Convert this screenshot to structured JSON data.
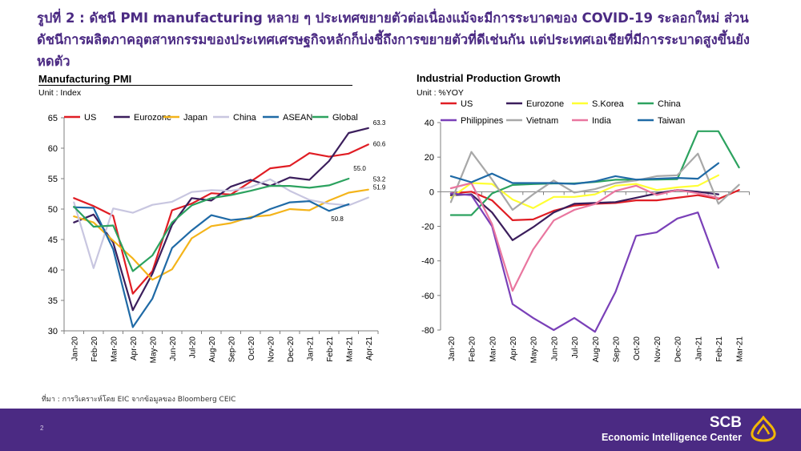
{
  "page": {
    "title": "รูปที่ 2 : ดัชนี PMI manufacturing หลาย ๆ ประเทศขยายตัวต่อเนื่องแม้จะมีการระบาดของ COVID-19 ระลอกใหม่ ส่วนดัชนีการผลิตภาคอุตสาหกรรมของประเทศเศรษฐกิจหลักก็บ่งชี้ถึงการขยายตัวที่ดีเช่นกัน แต่ประเทศเอเชียที่มีการระบาดสูงขึ้นยังหดตัว",
    "source": "ที่มา : การวิเคราะห์โดย EIC จากข้อมูลของ Bloomberg CEIC",
    "page_number": "2",
    "brand_name": "SCB",
    "brand_sub": "Economic Intelligence Center"
  },
  "chart_data": [
    {
      "type": "line",
      "title": "Manufacturing PMI",
      "unit": "Unit : Index",
      "categories": [
        "Jan-20",
        "Feb-20",
        "Mar-20",
        "Apr-20",
        "May-20",
        "Jun-20",
        "Jul-20",
        "Aug-20",
        "Sep-20",
        "Oct-20",
        "Nov-20",
        "Dec-20",
        "Jan-21",
        "Feb-21",
        "Mar-21",
        "Apr-21"
      ],
      "ylim": [
        30,
        65
      ],
      "yticks": [
        30,
        35,
        40,
        45,
        50,
        55,
        60,
        65
      ],
      "grid": false,
      "legend_position": "top",
      "series": [
        {
          "name": "US",
          "color": "#e01d24",
          "values": [
            51.8,
            50.5,
            48.9,
            36.1,
            39.8,
            49.8,
            50.9,
            52.6,
            52.4,
            54.5,
            56.7,
            57.1,
            59.2,
            58.6,
            59.1,
            60.6
          ]
        },
        {
          "name": "Eurozone",
          "color": "#3b1e5c",
          "values": [
            47.8,
            49.1,
            44.5,
            33.4,
            39.4,
            47.4,
            51.8,
            51.4,
            53.7,
            54.8,
            53.8,
            55.2,
            54.8,
            57.9,
            62.5,
            63.3
          ]
        },
        {
          "name": "Japan",
          "color": "#f4b41a",
          "values": [
            48.8,
            47.8,
            44.8,
            41.9,
            38.4,
            40.1,
            45.2,
            47.2,
            47.7,
            48.7,
            49.0,
            50.0,
            49.8,
            51.4,
            52.7,
            53.2
          ]
        },
        {
          "name": "China",
          "color": "#c8c6e0",
          "values": [
            51.1,
            40.3,
            50.1,
            49.4,
            50.7,
            51.2,
            52.8,
            53.1,
            53.0,
            53.6,
            54.9,
            53.0,
            51.5,
            50.9,
            50.6,
            51.9
          ]
        },
        {
          "name": "ASEAN",
          "color": "#1f6aa6",
          "values": [
            50.3,
            50.2,
            43.4,
            30.6,
            35.3,
            43.6,
            46.5,
            49.0,
            48.2,
            48.5,
            50.0,
            51.1,
            51.3,
            49.7,
            50.8,
            null
          ]
        },
        {
          "name": "Global",
          "color": "#2ca25f",
          "values": [
            50.4,
            47.1,
            47.3,
            39.8,
            42.4,
            47.8,
            50.6,
            51.8,
            52.3,
            53.0,
            53.8,
            53.8,
            53.5,
            53.9,
            55.0,
            null
          ]
        }
      ],
      "annotations": [
        {
          "text": "63.3",
          "series": "Eurozone"
        },
        {
          "text": "60.6",
          "series": "US"
        },
        {
          "text": "55.0",
          "series": "Global"
        },
        {
          "text": "53.2",
          "series": "Japan"
        },
        {
          "text": "51.9",
          "series": "China"
        },
        {
          "text": "50.8",
          "series": "ASEAN"
        }
      ]
    },
    {
      "type": "line",
      "title": "Industrial Production Growth",
      "unit": "Unit : %YOY",
      "categories": [
        "Jan-20",
        "Feb-20",
        "Mar-20",
        "Apr-20",
        "May-20",
        "Jun-20",
        "Jul-20",
        "Aug-20",
        "Sep-20",
        "Oct-20",
        "Nov-20",
        "Dec-20",
        "Jan-21",
        "Feb-21",
        "Mar-21"
      ],
      "ylim": [
        -80,
        40
      ],
      "yticks": [
        -80,
        -60,
        -40,
        -20,
        0,
        20,
        40
      ],
      "grid": false,
      "legend_position": "top",
      "series": [
        {
          "name": "US",
          "color": "#e01d24",
          "values": [
            -1.0,
            0.0,
            -5.0,
            -16.5,
            -16.0,
            -11.0,
            -8.0,
            -7.0,
            -6.5,
            -5.0,
            -5.0,
            -3.5,
            -2.0,
            -4.2,
            1.0
          ]
        },
        {
          "name": "Eurozone",
          "color": "#3b1e5c",
          "values": [
            -2.0,
            -1.5,
            -12.0,
            -28.0,
            -20.5,
            -12.0,
            -7.0,
            -6.5,
            -6.0,
            -3.5,
            -1.0,
            1.0,
            0.0,
            -1.5,
            null
          ]
        },
        {
          "name": "S.Korea",
          "color": "#ffff33",
          "values": [
            -3.5,
            5.0,
            4.5,
            -4.5,
            -9.5,
            -3.0,
            -3.0,
            -1.5,
            3.5,
            4.5,
            1.0,
            2.5,
            3.5,
            9.5,
            null
          ]
        },
        {
          "name": "China",
          "color": "#2ca25f",
          "values": [
            -13.5,
            -13.5,
            -1.0,
            3.9,
            4.4,
            4.8,
            4.8,
            5.6,
            6.9,
            6.9,
            7.0,
            7.3,
            35.0,
            35.0,
            14.0
          ]
        },
        {
          "name": "Philippines",
          "color": "#7a40b8",
          "values": [
            -1.0,
            -2.0,
            -20.0,
            -65.0,
            -73.0,
            -80.0,
            -73.0,
            -81.0,
            -58.0,
            -25.5,
            -23.5,
            -15.5,
            -12.0,
            -44.0,
            null
          ]
        },
        {
          "name": "Vietnam",
          "color": "#a8a8a8",
          "values": [
            -6.0,
            23.0,
            7.0,
            -10.5,
            -1.5,
            6.5,
            -0.5,
            1.5,
            5.0,
            6.5,
            9.0,
            9.5,
            22.0,
            -7.0,
            4.0
          ]
        },
        {
          "name": "India",
          "color": "#e9769f",
          "values": [
            2.0,
            5.0,
            -18.7,
            -57.3,
            -33.4,
            -16.6,
            -10.5,
            -7.1,
            0.5,
            3.5,
            -1.9,
            1.0,
            -0.9,
            -3.6,
            null
          ]
        },
        {
          "name": "Taiwan",
          "color": "#1f6aa6",
          "values": [
            9.0,
            5.5,
            10.5,
            5.0,
            5.0,
            5.0,
            4.5,
            6.0,
            9.0,
            7.0,
            7.5,
            8.0,
            7.5,
            16.5,
            null
          ]
        }
      ]
    }
  ]
}
